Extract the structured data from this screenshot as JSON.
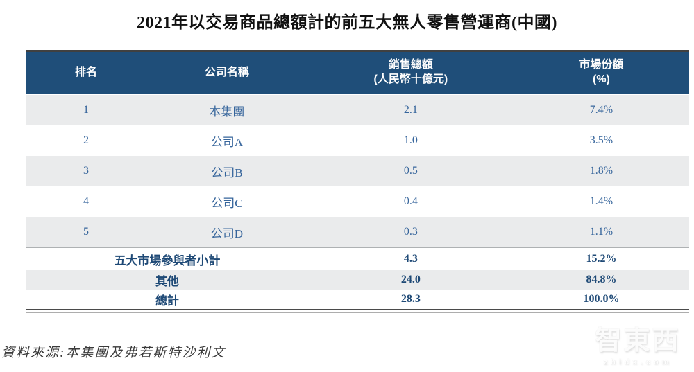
{
  "title": "2021年以交易商品總額計的前五大無人零售營運商(中國)",
  "table": {
    "columns": [
      {
        "label": "排名",
        "sublabel": ""
      },
      {
        "label": "公司名稱",
        "sublabel": ""
      },
      {
        "label": "銷售總額",
        "sublabel": "(人民幣十億元)"
      },
      {
        "label": "市場份額",
        "sublabel": "(%)"
      }
    ],
    "rows": [
      {
        "rank": "1",
        "company": "本集團",
        "sales": "2.1",
        "share": "7.4%"
      },
      {
        "rank": "2",
        "company": "公司A",
        "sales": "1.0",
        "share": "3.5%"
      },
      {
        "rank": "3",
        "company": "公司B",
        "sales": "0.5",
        "share": "1.8%"
      },
      {
        "rank": "4",
        "company": "公司C",
        "sales": "0.4",
        "share": "1.4%"
      },
      {
        "rank": "5",
        "company": "公司D",
        "sales": "0.3",
        "share": "1.1%"
      }
    ],
    "summary_rows": [
      {
        "label": "五大市場參與者小計",
        "sales": "4.3",
        "share": "15.2%"
      },
      {
        "label": "其他",
        "sales": "24.0",
        "share": "84.8%"
      },
      {
        "label": "總計",
        "sales": "28.3",
        "share": "100.0%"
      }
    ]
  },
  "source": "資料來源:本集團及弗若斯特沙利文",
  "watermark": {
    "text": "智東西",
    "subtext": "zhidx.com"
  },
  "colors": {
    "header_bg": "#1F4E79",
    "header_text": "#FDFDFD",
    "row_alt_bg": "#EAEBEC",
    "body_text": "#35649B",
    "summary_text": "#1E4976",
    "top_rule": "#404040",
    "bottom_rule": "#4A4A4A"
  }
}
